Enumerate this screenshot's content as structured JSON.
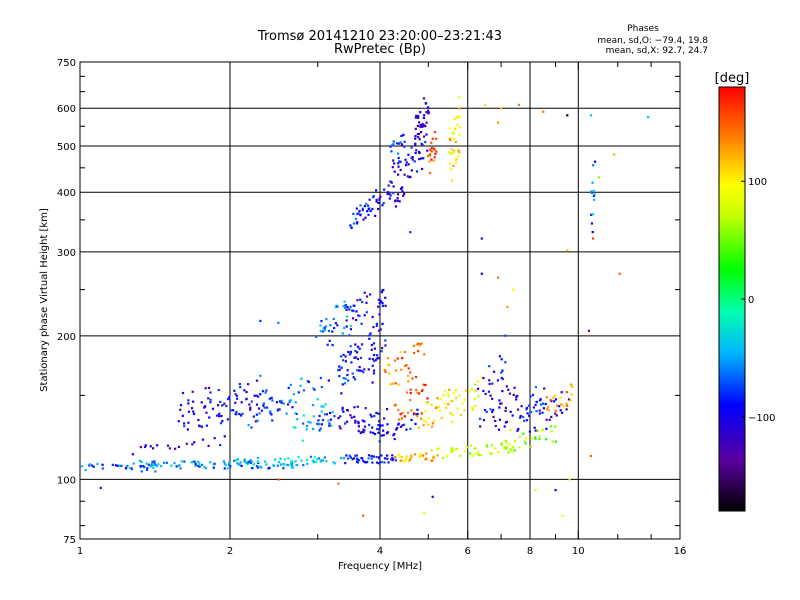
{
  "chart_data": {
    "type": "scatter",
    "title": "Tromsø 20141210 23:20:00–23:21:43",
    "subtitle": "RwPretec (Bp)",
    "xlabel": "Frequency [MHz]",
    "ylabel": "Stationary phase Virtual Height [km]",
    "x_scale": "log",
    "y_scale": "log",
    "xlim": [
      1,
      16
    ],
    "ylim": [
      75,
      750
    ],
    "x_ticks": [
      "1",
      "2",
      "4",
      "6",
      "8",
      "10",
      "16"
    ],
    "y_ticks": [
      "75",
      "100",
      "200",
      "300",
      "400",
      "500",
      "600",
      "750"
    ],
    "grid": true,
    "phases": {
      "title": "Phases",
      "o_line": "mean, sd,O: −79.4, 19.8",
      "x_line": "mean, sd,X:  92.7, 24.7"
    },
    "colorbar": {
      "unit": "[deg]",
      "ticks": [
        "100",
        "0",
        "−100"
      ],
      "tick_values": [
        100,
        0,
        -100
      ],
      "range": [
        -180,
        180
      ]
    },
    "traces": [
      {
        "x0": 1.0,
        "x1": 1.45,
        "y0": 106,
        "y1": 106,
        "n": 25,
        "phase": -70
      },
      {
        "x0": 1.25,
        "x1": 2.8,
        "y0": 107,
        "y1": 108,
        "n": 90,
        "phase": -60
      },
      {
        "x0": 2.0,
        "x1": 3.3,
        "y0": 108,
        "y1": 110,
        "n": 50,
        "phase": -35
      },
      {
        "x0": 3.4,
        "x1": 4.3,
        "y0": 110,
        "y1": 111,
        "n": 45,
        "phase": -85
      },
      {
        "x0": 4.3,
        "x1": 5.2,
        "y0": 110,
        "y1": 112,
        "n": 30,
        "phase": 115
      },
      {
        "x0": 5.2,
        "x1": 7.5,
        "y0": 112,
        "y1": 118,
        "n": 40,
        "phase": 75
      },
      {
        "x0": 7.0,
        "x1": 9.0,
        "y0": 115,
        "y1": 130,
        "n": 30,
        "phase": 60
      },
      {
        "x0": 1.3,
        "x1": 1.9,
        "y0": 115,
        "y1": 122,
        "n": 18,
        "phase": -110
      },
      {
        "x0": 1.6,
        "x1": 2.3,
        "y0": 125,
        "y1": 155,
        "n": 55,
        "phase": -95
      },
      {
        "x0": 1.6,
        "x1": 2.3,
        "y0": 140,
        "y1": 160,
        "n": 30,
        "phase": -105
      },
      {
        "x0": 2.2,
        "x1": 2.7,
        "y0": 130,
        "y1": 150,
        "n": 25,
        "phase": -80
      },
      {
        "x0": 2.3,
        "x1": 3.1,
        "y0": 140,
        "y1": 165,
        "n": 25,
        "phase": -70
      },
      {
        "x0": 2.7,
        "x1": 3.2,
        "y0": 120,
        "y1": 150,
        "n": 25,
        "phase": -40
      },
      {
        "x0": 3.0,
        "x1": 3.5,
        "y0": 180,
        "y1": 250,
        "n": 35,
        "phase": -60
      },
      {
        "x0": 3.3,
        "x1": 3.7,
        "y0": 150,
        "y1": 200,
        "n": 45,
        "phase": -90
      },
      {
        "x0": 3.4,
        "x1": 3.8,
        "y0": 200,
        "y1": 250,
        "n": 25,
        "phase": -100
      },
      {
        "x0": 3.0,
        "x1": 3.7,
        "y0": 122,
        "y1": 145,
        "n": 35,
        "phase": -100
      },
      {
        "x0": 3.6,
        "x1": 4.1,
        "y0": 120,
        "y1": 140,
        "n": 25,
        "phase": -105
      },
      {
        "x0": 3.8,
        "x1": 4.1,
        "y0": 150,
        "y1": 260,
        "n": 45,
        "phase": -100
      },
      {
        "x0": 3.9,
        "x1": 4.8,
        "y0": 118,
        "y1": 140,
        "n": 30,
        "phase": -95
      },
      {
        "x0": 4.1,
        "x1": 4.9,
        "y0": 150,
        "y1": 200,
        "n": 35,
        "phase": 140
      },
      {
        "x0": 4.3,
        "x1": 5.0,
        "y0": 130,
        "y1": 160,
        "n": 25,
        "phase": 160
      },
      {
        "x0": 4.8,
        "x1": 5.6,
        "y0": 125,
        "y1": 155,
        "n": 30,
        "phase": 110
      },
      {
        "x0": 5.5,
        "x1": 6.4,
        "y0": 130,
        "y1": 165,
        "n": 25,
        "phase": 90
      },
      {
        "x0": 6.3,
        "x1": 7.2,
        "y0": 125,
        "y1": 200,
        "n": 30,
        "phase": -100
      },
      {
        "x0": 6.7,
        "x1": 7.6,
        "y0": 120,
        "y1": 170,
        "n": 25,
        "phase": -120
      },
      {
        "x0": 7.5,
        "x1": 8.6,
        "y0": 125,
        "y1": 160,
        "n": 25,
        "phase": -90
      },
      {
        "x0": 8.0,
        "x1": 9.5,
        "y0": 125,
        "y1": 155,
        "n": 25,
        "phase": -110
      },
      {
        "x0": 8.6,
        "x1": 9.8,
        "y0": 135,
        "y1": 160,
        "n": 20,
        "phase": 130
      },
      {
        "x0": 3.5,
        "x1": 3.8,
        "y0": 340,
        "y1": 380,
        "n": 25,
        "phase": -85
      },
      {
        "x0": 3.8,
        "x1": 4.5,
        "y0": 360,
        "y1": 420,
        "n": 40,
        "phase": -100
      },
      {
        "x0": 4.2,
        "x1": 5.0,
        "y0": 400,
        "y1": 560,
        "n": 50,
        "phase": -100
      },
      {
        "x0": 4.7,
        "x1": 5.0,
        "y0": 500,
        "y1": 640,
        "n": 35,
        "phase": -115
      },
      {
        "x0": 5.0,
        "x1": 5.2,
        "y0": 420,
        "y1": 560,
        "n": 20,
        "phase": 150
      },
      {
        "x0": 5.5,
        "x1": 5.8,
        "y0": 400,
        "y1": 650,
        "n": 35,
        "phase": 105
      },
      {
        "x0": 4.2,
        "x1": 4.5,
        "y0": 470,
        "y1": 540,
        "n": 12,
        "phase": -80
      },
      {
        "x0": 10.6,
        "x1": 10.8,
        "y0": 300,
        "y1": 500,
        "n": 12,
        "phase": -70
      }
    ],
    "scattered": [
      [
        1.1,
        96,
        -120
      ],
      [
        1.35,
        117,
        -110
      ],
      [
        2.5,
        100,
        150
      ],
      [
        2.3,
        165,
        -60
      ],
      [
        2.5,
        213,
        -60
      ],
      [
        2.3,
        215,
        -80
      ],
      [
        3.3,
        98,
        140
      ],
      [
        3.7,
        84,
        150
      ],
      [
        4.9,
        85,
        80
      ],
      [
        5.1,
        92,
        -110
      ],
      [
        6.4,
        270,
        -90
      ],
      [
        6.9,
        265,
        140
      ],
      [
        7.2,
        230,
        130
      ],
      [
        7.4,
        250,
        100
      ],
      [
        8.2,
        95,
        100
      ],
      [
        9.0,
        95,
        -90
      ],
      [
        9.3,
        84,
        90
      ],
      [
        9.6,
        100,
        70
      ],
      [
        9.5,
        302,
        120
      ],
      [
        10.6,
        112,
        150
      ],
      [
        10.5,
        205,
        -140
      ],
      [
        10.7,
        320,
        160
      ],
      [
        10.7,
        360,
        -20
      ],
      [
        11.0,
        430,
        60
      ],
      [
        12.1,
        270,
        150
      ],
      [
        11.8,
        480,
        120
      ],
      [
        9.5,
        580,
        -180
      ],
      [
        10.6,
        580,
        -40
      ],
      [
        13.8,
        575,
        -40
      ],
      [
        7.0,
        600,
        120
      ],
      [
        7.6,
        610,
        140
      ],
      [
        4.6,
        330,
        -80
      ],
      [
        6.4,
        320,
        -100
      ],
      [
        6.5,
        610,
        110
      ],
      [
        8.5,
        590,
        140
      ],
      [
        6.9,
        560,
        130
      ]
    ]
  }
}
